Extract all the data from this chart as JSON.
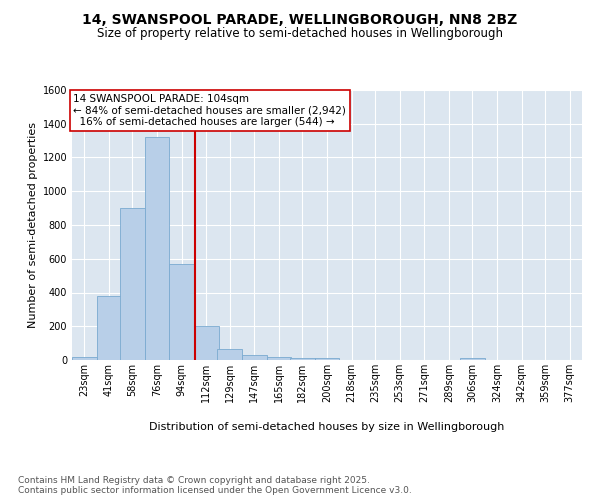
{
  "title": "14, SWANSPOOL PARADE, WELLINGBOROUGH, NN8 2BZ",
  "subtitle": "Size of property relative to semi-detached houses in Wellingborough",
  "xlabel": "Distribution of semi-detached houses by size in Wellingborough",
  "ylabel": "Number of semi-detached properties",
  "bin_labels": [
    "23sqm",
    "41sqm",
    "58sqm",
    "76sqm",
    "94sqm",
    "112sqm",
    "129sqm",
    "147sqm",
    "165sqm",
    "182sqm",
    "200sqm",
    "218sqm",
    "235sqm",
    "253sqm",
    "271sqm",
    "289sqm",
    "306sqm",
    "324sqm",
    "342sqm",
    "359sqm",
    "377sqm"
  ],
  "bin_edges": [
    23,
    41,
    58,
    76,
    94,
    112,
    129,
    147,
    165,
    182,
    200,
    218,
    235,
    253,
    271,
    289,
    306,
    324,
    342,
    359,
    377
  ],
  "bar_values": [
    20,
    380,
    900,
    1320,
    570,
    200,
    65,
    30,
    15,
    10,
    10,
    0,
    0,
    0,
    0,
    0,
    10,
    0,
    0,
    0,
    0
  ],
  "bar_color": "#b8cfe8",
  "bar_edge_color": "#7aaad0",
  "property_size": 104,
  "property_line_color": "#cc0000",
  "annotation_text": "14 SWANSPOOL PARADE: 104sqm\n← 84% of semi-detached houses are smaller (2,942)\n  16% of semi-detached houses are larger (544) →",
  "annotation_box_color": "#ffffff",
  "annotation_box_edge_color": "#cc0000",
  "ylim": [
    0,
    1600
  ],
  "yticks": [
    0,
    200,
    400,
    600,
    800,
    1000,
    1200,
    1400,
    1600
  ],
  "bg_color": "#dce6f0",
  "grid_color": "#ffffff",
  "footer_text": "Contains HM Land Registry data © Crown copyright and database right 2025.\nContains public sector information licensed under the Open Government Licence v3.0.",
  "title_fontsize": 10,
  "subtitle_fontsize": 8.5,
  "axis_label_fontsize": 8,
  "tick_fontsize": 7,
  "annotation_fontsize": 7.5,
  "footer_fontsize": 6.5
}
